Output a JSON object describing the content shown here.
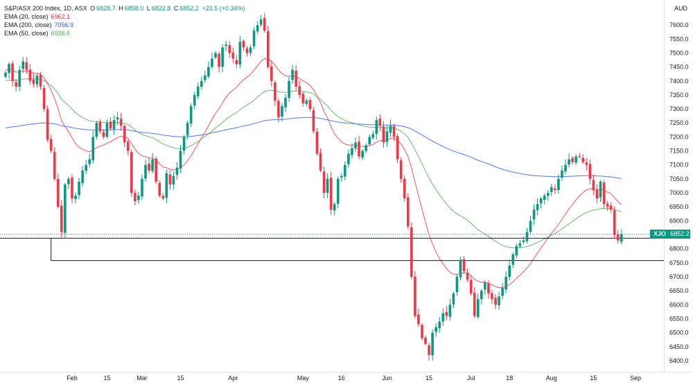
{
  "legend": {
    "header": {
      "title": "S&P/ASX 200 Index, 1D, ASX",
      "open_label": "O",
      "open": "6828.7",
      "high_label": "H",
      "high": "6858.0",
      "low_label": "L",
      "low": "6822.8",
      "close_label": "C",
      "close": "6852.2",
      "change": "+23.5 (+0.34%)"
    },
    "ema20": {
      "label": "EMA (20, close)",
      "value": "6962.1",
      "color": "#f23645"
    },
    "ema200": {
      "label": "EMA (200, close)",
      "value": "7056.9",
      "color": "#2962ff"
    },
    "ema50": {
      "label": "EMA (50, close)",
      "value": "6938.6",
      "color": "#4caf50"
    }
  },
  "price_axis": {
    "currency": "AUD",
    "tag_symbol": "XJO",
    "tag_value": "6852.2"
  },
  "chart_data": {
    "type": "candlestick",
    "colors": {
      "up": "#089981",
      "down": "#f23645"
    },
    "ylim": [
      6375,
      7640
    ],
    "yticks": [
      6400,
      6450,
      6500,
      6550,
      6600,
      6650,
      6700,
      6750,
      6800,
      6850,
      6900,
      6950,
      7000,
      7050,
      7100,
      7150,
      7200,
      7250,
      7300,
      7350,
      7400,
      7450,
      7500,
      7550,
      7600
    ],
    "x_labels": [
      {
        "index": 19,
        "label": "Feb"
      },
      {
        "index": 29,
        "label": "15"
      },
      {
        "index": 39,
        "label": "Mar"
      },
      {
        "index": 50,
        "label": "15"
      },
      {
        "index": 65,
        "label": "Apr"
      },
      {
        "index": 85,
        "label": "May"
      },
      {
        "index": 96,
        "label": "16"
      },
      {
        "index": 109,
        "label": "Jun"
      },
      {
        "index": 121,
        "label": "15"
      },
      {
        "index": 133,
        "label": "Jul"
      },
      {
        "index": 144,
        "label": "18"
      },
      {
        "index": 156,
        "label": "Aug"
      },
      {
        "index": 168,
        "label": "15"
      },
      {
        "index": 180,
        "label": "Sep"
      }
    ],
    "closes": [
      7430,
      7460,
      7400,
      7380,
      7440,
      7470,
      7440,
      7400,
      7390,
      7420,
      7380,
      7300,
      7190,
      7150,
      7050,
      6950,
      6860,
      7030,
      7050,
      6980,
      6990,
      7040,
      7080,
      7100,
      7120,
      7200,
      7250,
      7220,
      7200,
      7250,
      7230,
      7260,
      7270,
      7240,
      7180,
      7150,
      7000,
      6970,
      6990,
      7050,
      7100,
      7080,
      7120,
      7040,
      6990,
      6980,
      7070,
      7030,
      7060,
      7090,
      7150,
      7200,
      7250,
      7310,
      7350,
      7380,
      7400,
      7420,
      7450,
      7480,
      7500,
      7450,
      7520,
      7530,
      7500,
      7480,
      7460,
      7540,
      7520,
      7500,
      7520,
      7580,
      7600,
      7620,
      7580,
      7450,
      7400,
      7330,
      7270,
      7310,
      7340,
      7400,
      7440,
      7380,
      7350,
      7320,
      7330,
      7300,
      7220,
      7140,
      7080,
      7000,
      7050,
      6940,
      6960,
      7050,
      7060,
      7100,
      7140,
      7160,
      7180,
      7130,
      7150,
      7170,
      7200,
      7210,
      7260,
      7240,
      7180,
      7220,
      7240,
      7200,
      7120,
      7050,
      6980,
      6880,
      6700,
      6560,
      6530,
      6480,
      6460,
      6420,
      6500,
      6520,
      6540,
      6570,
      6560,
      6600,
      6640,
      6700,
      6760,
      6720,
      6690,
      6640,
      6560,
      6620,
      6650,
      6680,
      6640,
      6620,
      6600,
      6630,
      6660,
      6700,
      6740,
      6780,
      6810,
      6820,
      6830,
      6860,
      6900,
      6940,
      6960,
      6980,
      6990,
      7000,
      7020,
      7010,
      7050,
      7080,
      7100,
      7120,
      7110,
      7130,
      7130,
      7110,
      7100,
      7050,
      7010,
      6980,
      7040,
      6960,
      6950,
      6940,
      6850,
      6830,
      6852.2
    ]
  }
}
